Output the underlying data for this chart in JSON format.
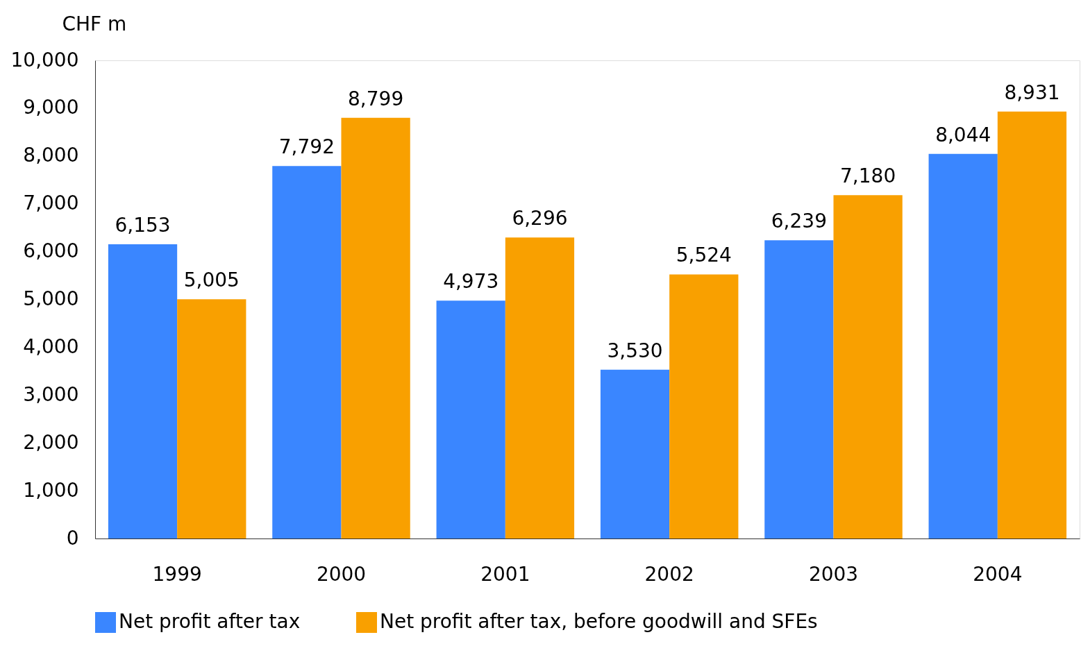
{
  "chart_data": {
    "type": "bar",
    "ylabel": "CHF m",
    "categories": [
      "1999",
      "2000",
      "2001",
      "2002",
      "2003",
      "2004"
    ],
    "series": [
      {
        "name": "Net profit after tax",
        "color": "#3a86ff",
        "values": [
          6153,
          7792,
          4973,
          3530,
          6239,
          8044
        ],
        "value_labels": [
          "6,153",
          "7,792",
          "4,973",
          "3,530",
          "6,239",
          "8,044"
        ]
      },
      {
        "name": "Net profit after tax, before goodwill and SFEs",
        "color": "#f9a000",
        "values": [
          5005,
          8799,
          6296,
          5524,
          7180,
          8931
        ],
        "value_labels": [
          "5,005",
          "8,799",
          "6,296",
          "5,524",
          "7,180",
          "8,931"
        ]
      }
    ],
    "ylim": [
      0,
      10000
    ],
    "yticks": [
      0,
      {
        "value": 1000,
        "label": "1,000"
      },
      {
        "value": 2000,
        "label": "2,000"
      },
      {
        "value": 3000,
        "label": "3,000"
      },
      {
        "value": 4000,
        "label": "4,000"
      },
      {
        "value": 5000,
        "label": "5,000"
      },
      {
        "value": 6000,
        "label": "6,000"
      },
      {
        "value": 7000,
        "label": "7,000"
      },
      {
        "value": 8000,
        "label": "8,000"
      },
      {
        "value": 9000,
        "label": "9,000"
      },
      {
        "value": 10000,
        "label": "10,000"
      }
    ],
    "legend": "bottom",
    "grid": false
  }
}
